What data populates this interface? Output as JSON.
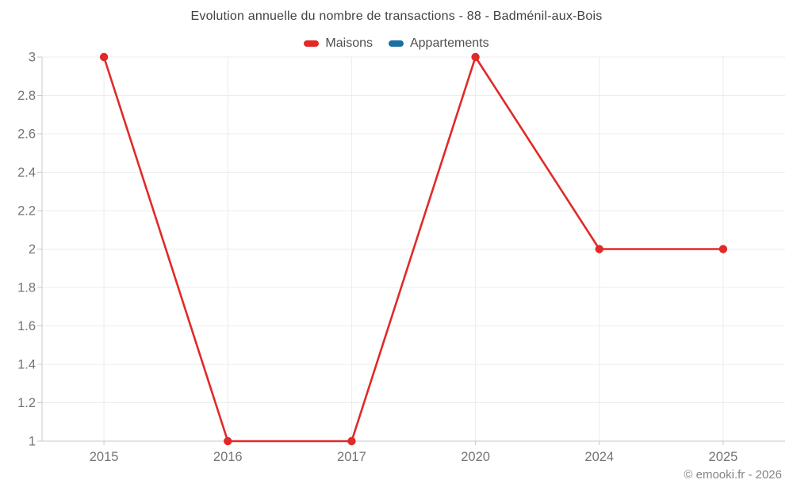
{
  "header": {
    "title": "Evolution annuelle du nombre de transactions - 88 - Badménil-aux-Bois"
  },
  "footer": {
    "copyright": "© emooki.fr - 2026"
  },
  "colors": {
    "maisons": "#e02a28",
    "appartements": "#1a6fa0",
    "grid_line": "#ececec",
    "axis_line": "#c9c9c9",
    "tick_label": "#757575"
  },
  "chart_data": {
    "type": "line",
    "title": "Evolution annuelle du nombre de transactions - 88 - Badménil-aux-Bois",
    "categories": [
      "2015",
      "2016",
      "2017",
      "2020",
      "2024",
      "2025"
    ],
    "series": [
      {
        "name": "Maisons",
        "color": "#e02a28",
        "values": [
          3,
          1,
          1,
          3,
          2,
          2
        ]
      },
      {
        "name": "Appartements",
        "color": "#1a6fa0",
        "values": []
      }
    ],
    "xlabel": "",
    "ylabel": "",
    "ylim": [
      1,
      3
    ],
    "ytick_labels": [
      "3",
      "2.8",
      "2.6",
      "2.4",
      "2.2",
      "2",
      "1.8",
      "1.6",
      "1.4",
      "1.2",
      "1"
    ],
    "grid": true,
    "legend_position": "top",
    "marker": "circle"
  }
}
